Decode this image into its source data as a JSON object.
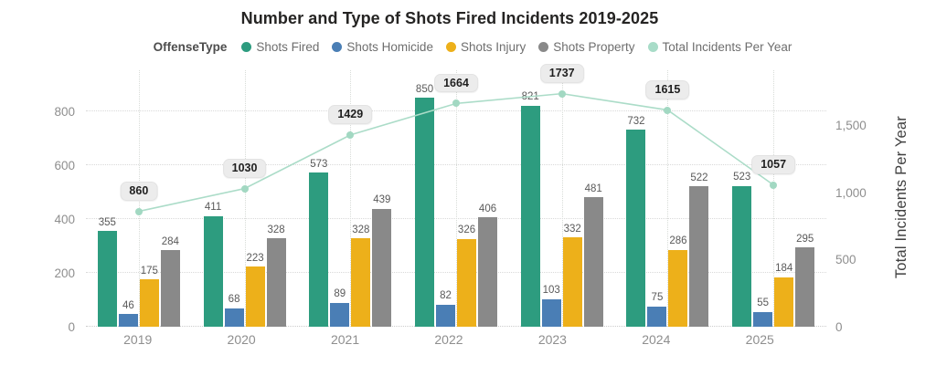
{
  "title": "Number and Type of Shots Fired Incidents 2019-2025",
  "legend": {
    "field_label": "OffenseType",
    "items": [
      {
        "label": "Shots Fired",
        "color": "#2d9c7f"
      },
      {
        "label": "Shots Homicide",
        "color": "#4a7eb5"
      },
      {
        "label": "Shots Injury",
        "color": "#edb01a"
      },
      {
        "label": "Shots Property",
        "color": "#898989"
      },
      {
        "label": "Total Incidents Per Year",
        "color": "#a8dcc8"
      }
    ]
  },
  "chart_data": {
    "type": "bar",
    "subtype": "grouped-bars-with-line",
    "title": "Number and Type of Shots Fired Incidents 2019-2025",
    "categories": [
      "2019",
      "2020",
      "2021",
      "2022",
      "2023",
      "2024",
      "2025"
    ],
    "series": [
      {
        "name": "Shots Fired",
        "color": "#2d9c7f",
        "values": [
          355,
          411,
          573,
          850,
          821,
          732,
          523
        ]
      },
      {
        "name": "Shots Homicide",
        "color": "#4a7eb5",
        "values": [
          46,
          68,
          89,
          82,
          103,
          75,
          55
        ]
      },
      {
        "name": "Shots Injury",
        "color": "#edb01a",
        "values": [
          175,
          223,
          328,
          326,
          332,
          286,
          184
        ]
      },
      {
        "name": "Shots Property",
        "color": "#898989",
        "values": [
          284,
          328,
          439,
          406,
          481,
          522,
          295
        ]
      }
    ],
    "line_series": {
      "name": "Total Incidents Per Year",
      "color": "#a8dcc8",
      "values": [
        860,
        1030,
        1429,
        1664,
        1737,
        1615,
        1057
      ]
    },
    "left_axis": {
      "ticks": [
        0,
        200,
        400,
        600,
        800
      ],
      "max": 960
    },
    "right_axis": {
      "title": "Total Incidents Per Year",
      "ticks": [
        "0",
        "500",
        "1,000",
        "1,500"
      ],
      "tick_values": [
        0,
        500,
        1000,
        1500
      ],
      "max": 1925
    },
    "grid": true,
    "legend_position": "top",
    "value_labels": true
  }
}
